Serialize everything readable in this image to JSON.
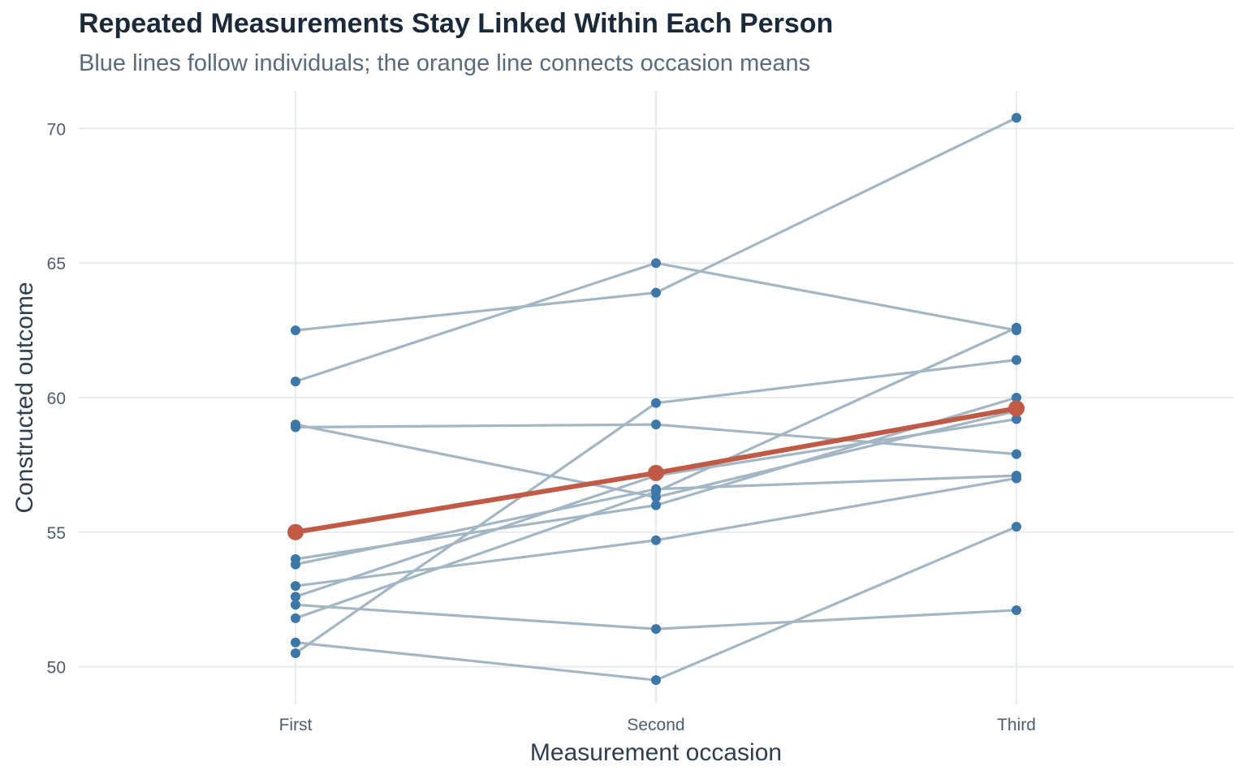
{
  "chart_data": {
    "type": "line",
    "title": "Repeated Measurements Stay Linked Within Each Person",
    "subtitle": "Blue lines follow individuals; the orange line connects occasion means",
    "xlabel": "Measurement occasion",
    "ylabel": "Constructed outcome",
    "categories": [
      "First",
      "Second",
      "Third"
    ],
    "ylim": [
      48.6,
      71.4
    ],
    "yticks": [
      50,
      55,
      60,
      65,
      70
    ],
    "grid": true,
    "legend": "none",
    "colors": {
      "individual_line": "#a3b6c4",
      "individual_point": "#3d77a8",
      "mean": "#c05a47",
      "grid": "#e6ebf0"
    },
    "individuals": [
      [
        62.5,
        63.9,
        70.4
      ],
      [
        60.6,
        65.0,
        62.5
      ],
      [
        59.0,
        56.3,
        59.5
      ],
      [
        58.9,
        59.0,
        57.9
      ],
      [
        54.0,
        56.0,
        60.0
      ],
      [
        53.8,
        56.6,
        57.1
      ],
      [
        53.0,
        54.7,
        57.0
      ],
      [
        52.6,
        57.1,
        59.2
      ],
      [
        52.3,
        51.4,
        52.1
      ],
      [
        51.8,
        56.5,
        62.6
      ],
      [
        50.9,
        49.5,
        55.2
      ],
      [
        50.5,
        59.8,
        61.4
      ]
    ],
    "series": [
      {
        "values": [
          55.0,
          57.2,
          59.6
        ]
      }
    ]
  }
}
